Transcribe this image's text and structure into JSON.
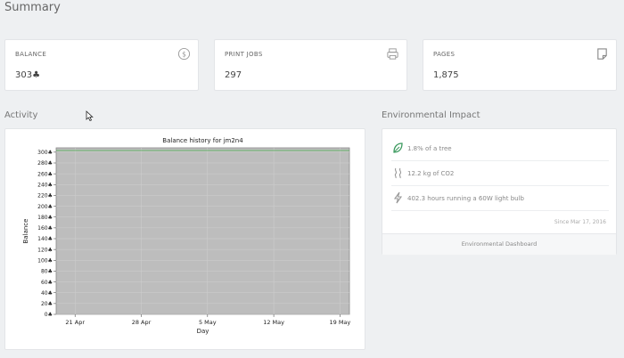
{
  "page": {
    "title": "Summary"
  },
  "stats": [
    {
      "label": "BALANCE",
      "value": "303♣",
      "icon": "dollar-circle-icon"
    },
    {
      "label": "PRINT JOBS",
      "value": "297",
      "icon": "printer-icon"
    },
    {
      "label": "PAGES",
      "value": "1,875",
      "icon": "page-icon"
    }
  ],
  "activity": {
    "title": "Activity"
  },
  "environmental": {
    "title": "Environmental Impact",
    "items": [
      {
        "text": "1.8% of a tree",
        "icon": "leaf-icon"
      },
      {
        "text": "12.2 kg of CO2",
        "icon": "smoke-icon"
      },
      {
        "text": "402.3 hours running a 60W light bulb",
        "icon": "lightning-icon"
      }
    ],
    "since": "Since Mar 17, 2016",
    "footer": "Environmental Dashboard"
  },
  "chart_data": {
    "type": "line",
    "title": "Balance history for jm2n4",
    "xlabel": "Day",
    "ylabel": "Balance",
    "x_ticks": [
      "21 Apr",
      "28 Apr",
      "5 May",
      "12 May",
      "19 May"
    ],
    "x": [
      "2016-04-19",
      "2016-05-20"
    ],
    "y_ticks": [
      "0♣",
      "20♣",
      "40♣",
      "60♣",
      "80♣",
      "100♣",
      "120♣",
      "140♣",
      "160♣",
      "180♣",
      "200♣",
      "220♣",
      "240♣",
      "260♣",
      "280♣",
      "300♣"
    ],
    "ylim": [
      0,
      308
    ],
    "series": [
      {
        "values": [
          303,
          303
        ],
        "color": "#4caf50"
      }
    ],
    "plot_background": "#bdbdbd",
    "grid": true
  }
}
